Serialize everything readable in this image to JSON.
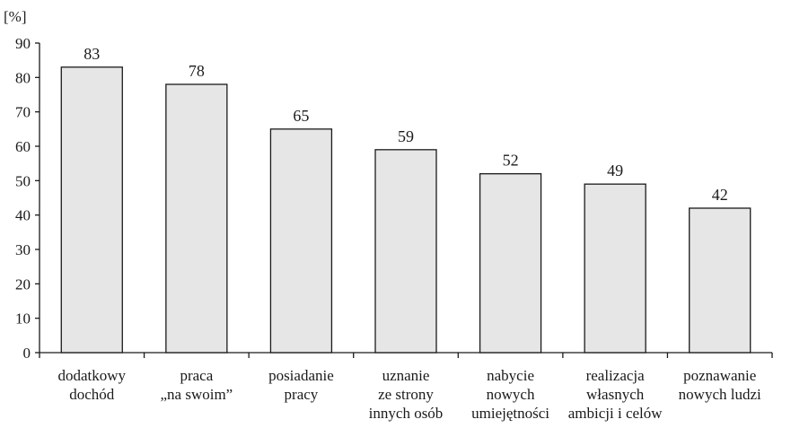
{
  "chart_data": {
    "type": "bar",
    "title": "",
    "xlabel": "",
    "ylabel": "[%]",
    "ylim": [
      0,
      90
    ],
    "yticks": [
      0,
      10,
      20,
      30,
      40,
      50,
      60,
      70,
      80,
      90
    ],
    "grid": false,
    "categories": [
      [
        "dodatkowy",
        "dochód"
      ],
      [
        "praca",
        "„na swoim”"
      ],
      [
        "posiadanie",
        "pracy"
      ],
      [
        "uznanie",
        "ze strony",
        "innych osób"
      ],
      [
        "nabycie",
        "nowych",
        "umiejętności"
      ],
      [
        "realizacja",
        "własnych",
        "ambicji i celów"
      ],
      [
        "poznawanie",
        "nowych ludzi"
      ]
    ],
    "values": [
      83,
      78,
      65,
      59,
      52,
      49,
      42
    ],
    "colors": {
      "bar_fill": "#e6e6e6",
      "bar_stroke": "#1a1a1a",
      "axis": "#1a1a1a",
      "text": "#1a1a1a"
    }
  }
}
